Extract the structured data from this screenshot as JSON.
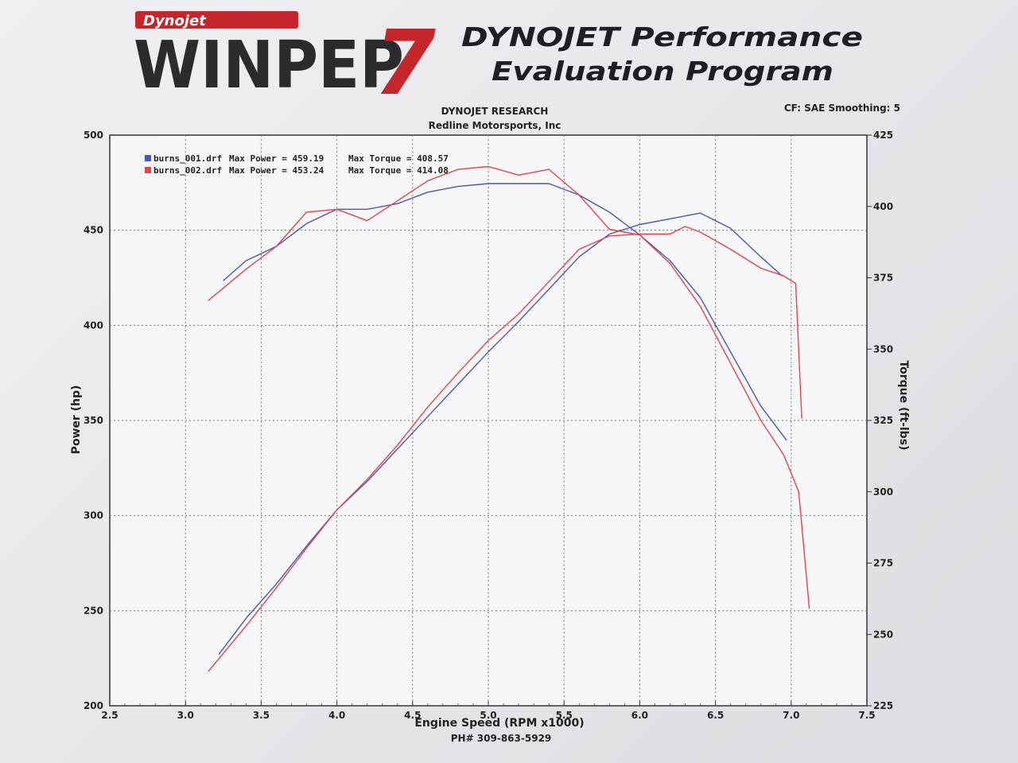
{
  "header": {
    "logo_top": "Dynojet",
    "logo_main": "WINPEP",
    "logo_num": "7",
    "title_line1": "DYNOJET Performance",
    "title_line2": "Evaluation Program",
    "company": "DYNOJET RESEARCH",
    "shop": "Redline Motorsports, Inc",
    "settings": "CF: SAE  Smoothing: 5",
    "phone": "PH# 309-863-5929"
  },
  "chart_data": {
    "type": "line",
    "xlabel": "Engine Speed (RPM x1000)",
    "ylabel": "Power (hp)",
    "y2label": "Torque (ft-lbs)",
    "xlim": [
      2.5,
      7.5
    ],
    "ylim": [
      200,
      500
    ],
    "y2lim": [
      225,
      425
    ],
    "xticks": [
      "2.5",
      "3.0",
      "3.5",
      "4.0",
      "4.5",
      "5.0",
      "5.5",
      "6.0",
      "6.5",
      "7.0",
      "7.5"
    ],
    "yticks": [
      "200",
      "250",
      "300",
      "350",
      "400",
      "450",
      "500"
    ],
    "y2ticks": [
      "225",
      "250",
      "275",
      "300",
      "325",
      "350",
      "375",
      "400",
      "425"
    ],
    "grid": true,
    "legend": [
      {
        "file": "burns_001.drf",
        "power_label": "Max Power = 459.19",
        "torque_label": "Max Torque = 408.57",
        "color": "#4a57b0"
      },
      {
        "file": "burns_002.drf",
        "power_label": "Max Power = 453.24",
        "torque_label": "Max Torque = 414.08",
        "color": "#e0454c"
      }
    ],
    "series": [
      {
        "run": "burns_001.drf",
        "quantity": "power",
        "axis": "left",
        "color": "#4a57b0",
        "x": [
          3.22,
          3.4,
          3.6,
          3.8,
          4.0,
          4.2,
          4.4,
          4.6,
          4.8,
          5.0,
          5.2,
          5.4,
          5.6,
          5.8,
          6.0,
          6.2,
          6.4,
          6.6,
          6.8,
          6.94
        ],
        "y": [
          227,
          246,
          264,
          284,
          303,
          318,
          335,
          352,
          369,
          386,
          402,
          419,
          436,
          448,
          453,
          456,
          459,
          451,
          436,
          426
        ]
      },
      {
        "run": "burns_001.drf",
        "quantity": "torque",
        "axis": "right",
        "color": "#4a57b0",
        "x": [
          3.25,
          3.4,
          3.6,
          3.8,
          4.0,
          4.2,
          4.4,
          4.6,
          4.8,
          5.0,
          5.2,
          5.4,
          5.6,
          5.8,
          6.0,
          6.2,
          6.4,
          6.6,
          6.8,
          6.97
        ],
        "y": [
          374,
          381,
          386,
          394,
          399,
          399,
          401,
          405,
          407,
          408,
          408,
          408,
          404,
          398,
          390,
          381,
          368,
          349,
          330,
          318
        ]
      },
      {
        "run": "burns_002.drf",
        "quantity": "power",
        "axis": "left",
        "color": "#e0454c",
        "x": [
          3.15,
          3.4,
          3.6,
          3.8,
          4.0,
          4.2,
          4.4,
          4.6,
          4.8,
          5.0,
          5.2,
          5.4,
          5.6,
          5.8,
          6.0,
          6.2,
          6.3,
          6.4,
          6.6,
          6.8,
          6.95,
          7.03,
          7.07
        ],
        "y": [
          218,
          242,
          262,
          283,
          303,
          319,
          337,
          357,
          375,
          392,
          406,
          423,
          440,
          447,
          448,
          448,
          452,
          449,
          440,
          430,
          426,
          422,
          351
        ]
      },
      {
        "run": "burns_002.drf",
        "quantity": "torque",
        "axis": "right",
        "color": "#e0454c",
        "x": [
          3.15,
          3.4,
          3.6,
          3.8,
          4.0,
          4.2,
          4.4,
          4.6,
          4.8,
          5.0,
          5.2,
          5.4,
          5.6,
          5.8,
          6.0,
          6.2,
          6.4,
          6.6,
          6.8,
          6.95,
          7.05,
          7.12
        ],
        "y": [
          367,
          378,
          386,
          398,
          399,
          395,
          402,
          409,
          413,
          414,
          411,
          413,
          404,
          392,
          390,
          380,
          365,
          345,
          325,
          313,
          300,
          259
        ]
      }
    ]
  }
}
